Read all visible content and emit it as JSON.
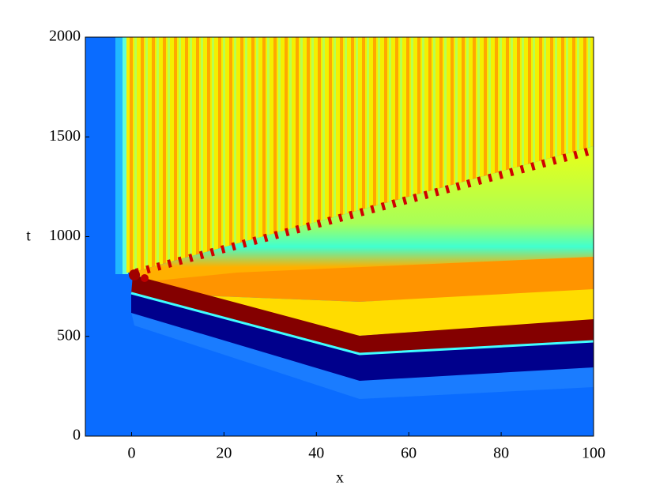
{
  "chart_data": {
    "type": "heatmap",
    "xlabel": "x",
    "ylabel": "t",
    "xlim": [
      -10,
      100
    ],
    "ylim": [
      0,
      2000
    ],
    "xticks": [
      0,
      20,
      40,
      60,
      80,
      100
    ],
    "yticks": [
      0,
      500,
      1000,
      1500,
      2000
    ]
  }
}
